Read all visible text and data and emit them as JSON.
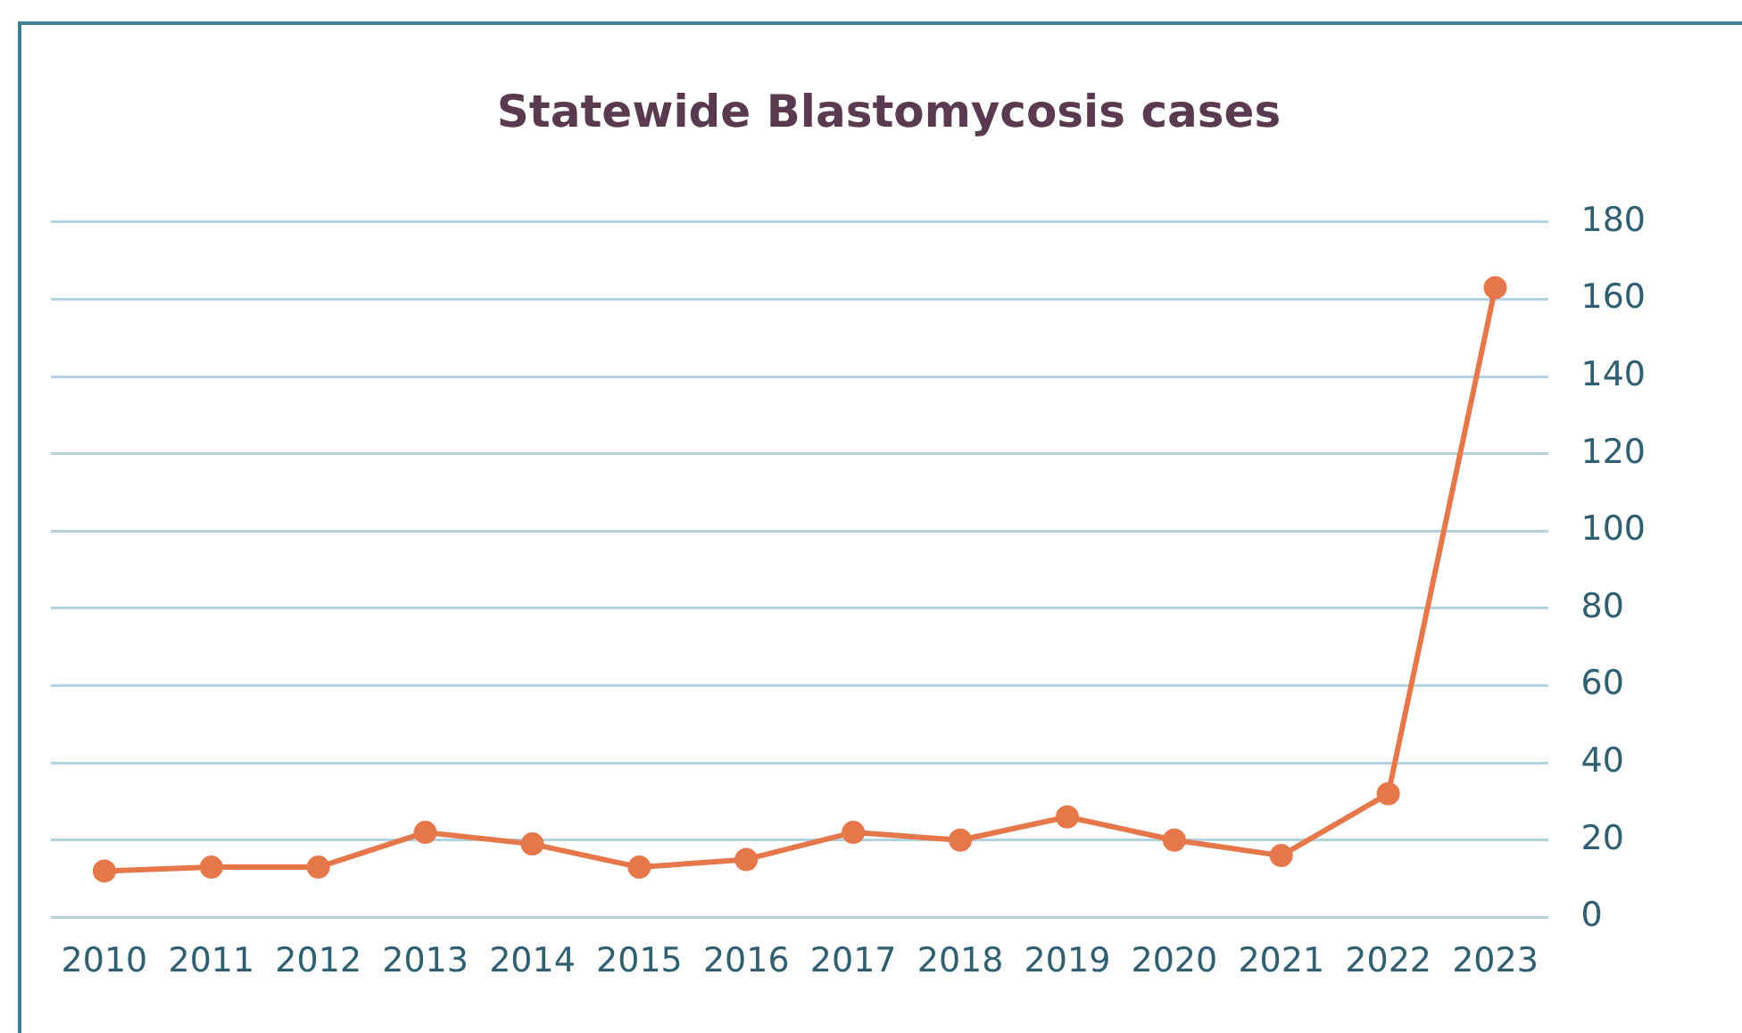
{
  "chart_data": {
    "type": "line",
    "title": "Statewide Blastomycosis cases",
    "categories": [
      "2010",
      "2011",
      "2012",
      "2013",
      "2014",
      "2015",
      "2016",
      "2017",
      "2018",
      "2019",
      "2020",
      "2021",
      "2022",
      "2023"
    ],
    "series": [
      {
        "color": "#e5774a",
        "values": [
          12,
          13,
          13,
          22,
          19,
          13,
          15,
          22,
          20,
          26,
          20,
          16,
          32,
          163
        ]
      }
    ],
    "ylim": [
      0,
      180
    ],
    "yticks": [
      0,
      20,
      40,
      60,
      80,
      100,
      120,
      140,
      160,
      180
    ],
    "grid": "y",
    "legend": false,
    "marker": "circle",
    "line_style": "solid"
  }
}
